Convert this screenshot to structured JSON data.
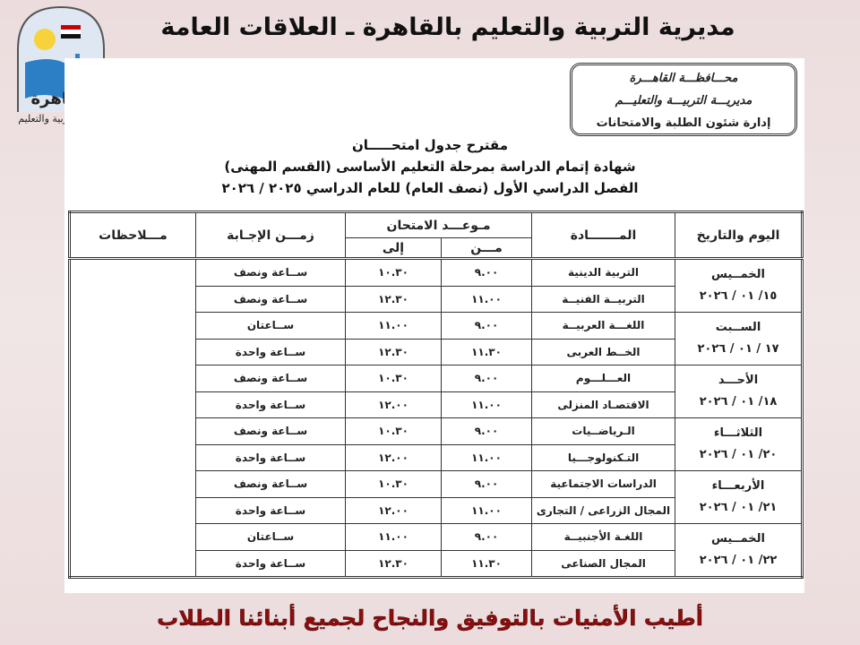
{
  "banner": {
    "title": "مديرية التربية والتعليم بالقاهرة ـ العلاقات العامة والإعـلام"
  },
  "logo": {
    "word": "القاهرة",
    "caption": "مديرية التربية والتعليم"
  },
  "stamp": {
    "line1": "محـــافظـــة القاهـــرة",
    "line2": "مديريـــة التربيـــة والتعليـــم",
    "line3": "إدارة شئون الطلبة والامتحانات"
  },
  "titles": {
    "line1": "مقترح جدول امتحـــــان",
    "line2": "شهادة إتمام الدراسة بمرحلة التعليم الأساسى (القسم المهنى)",
    "line3": "الفصل الدراسي الأول (نصف العام) للعام الدراسي ٢٠٢٥ / ٢٠٢٦"
  },
  "table": {
    "headers": {
      "day_date": "اليوم والتاريخ",
      "subject": "المـــــــادة",
      "exam_time": "مـوعـــد الامتحان",
      "from": "مـــن",
      "to": "إلى",
      "duration": "زمـــن الإجـابة",
      "notes": "مـــلاحظات"
    },
    "days": [
      {
        "day": "الخمــيس",
        "date": "١٥/ ٠١ / ٢٠٢٦",
        "rows": [
          {
            "subject": "التربية الدينية",
            "from": "٩.٠٠",
            "to": "١٠.٣٠",
            "duration": "ســاعة ونصف"
          },
          {
            "subject": "التربيــة الفنيــة",
            "from": "١١.٠٠",
            "to": "١٢.٣٠",
            "duration": "ســاعة ونصف"
          }
        ]
      },
      {
        "day": "الســبت",
        "date": "١٧ / ٠١ / ٢٠٢٦",
        "rows": [
          {
            "subject": "اللغـــة العربيــة",
            "from": "٩.٠٠",
            "to": "١١.٠٠",
            "duration": "ســاعتان"
          },
          {
            "subject": "الخــط العربى",
            "from": "١١.٣٠",
            "to": "١٢.٣٠",
            "duration": "ســاعة واحدة"
          }
        ]
      },
      {
        "day": "الأحـــد",
        "date": "١٨/ ٠١ / ٢٠٢٦",
        "rows": [
          {
            "subject": "العـــلـــوم",
            "from": "٩.٠٠",
            "to": "١٠.٣٠",
            "duration": "ســاعة ونصف"
          },
          {
            "subject": "الاقتصـاد المنزلى",
            "from": "١١.٠٠",
            "to": "١٢.٠٠",
            "duration": "ســاعة واحدة"
          }
        ]
      },
      {
        "day": "الثلاثـــاء",
        "date": "٢٠/ ٠١ / ٢٠٢٦",
        "rows": [
          {
            "subject": "الـرياضــيات",
            "from": "٩.٠٠",
            "to": "١٠.٣٠",
            "duration": "ســاعة ونصف"
          },
          {
            "subject": "التـكنولوجـــيا",
            "from": "١١.٠٠",
            "to": "١٢.٠٠",
            "duration": "ســاعة واحدة"
          }
        ]
      },
      {
        "day": "الأربعـــاء",
        "date": "٢١/ ٠١ / ٢٠٢٦",
        "rows": [
          {
            "subject": "الدراسات الاجتماعية",
            "from": "٩.٠٠",
            "to": "١٠.٣٠",
            "duration": "ســاعة ونصف"
          },
          {
            "subject": "المجال الزراعى / التجارى",
            "from": "١١.٠٠",
            "to": "١٢.٠٠",
            "duration": "ســاعة واحدة"
          }
        ]
      },
      {
        "day": "الخمــيس",
        "date": "٢٢/ ٠١ / ٢٠٢٦",
        "rows": [
          {
            "subject": "اللغـة الأجنبيــة",
            "from": "٩.٠٠",
            "to": "١١.٠٠",
            "duration": "ســاعتان"
          },
          {
            "subject": "المجال الصناعى",
            "from": "١١.٣٠",
            "to": "١٢.٣٠",
            "duration": "ســاعة واحدة"
          }
        ]
      }
    ]
  },
  "footer": {
    "text": "أطيب الأمنيات بالتوفيق والنجاح لجميع أبنائنا الطلاب"
  },
  "colors": {
    "background": "#ecdcdd",
    "footer_text": "#8b0d0d"
  }
}
